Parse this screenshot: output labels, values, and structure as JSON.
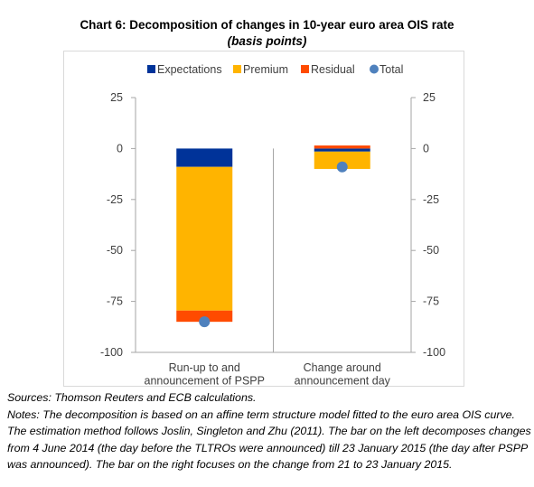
{
  "chart_data": {
    "type": "bar",
    "stacked": true,
    "title": "Chart 6: Decomposition of changes in 10-year euro area OIS rate",
    "subtitle": "(basis points)",
    "categories": [
      "Run-up to and announcement of PSPP",
      "Change around announcement day"
    ],
    "category_lines": [
      [
        "Run-up to and",
        "announcement of PSPP"
      ],
      [
        "Change around",
        "announcement day"
      ]
    ],
    "series": [
      {
        "name": "Expectations",
        "color": "#003399",
        "values": [
          -9,
          -1.5
        ]
      },
      {
        "name": "Premium",
        "color": "#ffb400",
        "values": [
          -70.5,
          -8.5
        ]
      },
      {
        "name": "Residual",
        "color": "#ff4b00",
        "values": [
          -5.5,
          1.5
        ]
      }
    ],
    "total": {
      "name": "Total",
      "color": "#4f81bd",
      "values": [
        -85,
        -9
      ]
    },
    "legend_labels": [
      "Expectations",
      "Premium",
      "Residual",
      "Total"
    ],
    "legend_position": "top",
    "ylim": [
      -100,
      25
    ],
    "yticks": [
      "25",
      "0",
      "-25",
      "-50",
      "-75",
      "-100"
    ],
    "ytick_values": [
      25,
      0,
      -25,
      -50,
      -75,
      -100
    ],
    "grid": false,
    "xlabel": "",
    "ylabel": ""
  },
  "notes": {
    "sources": "Sources: Thomson Reuters and ECB calculations.",
    "text": "Notes: The decomposition is based on an affine term structure model fitted to the euro area OIS curve. The estimation method follows Joslin, Singleton and Zhu (2011). The bar on the left decomposes changes from 4 June 2014 (the day before the TLTROs were announced) till 23 January 2015 (the day after PSPP was announced). The bar on the right focuses on the change from 21 to 23 January 2015."
  }
}
